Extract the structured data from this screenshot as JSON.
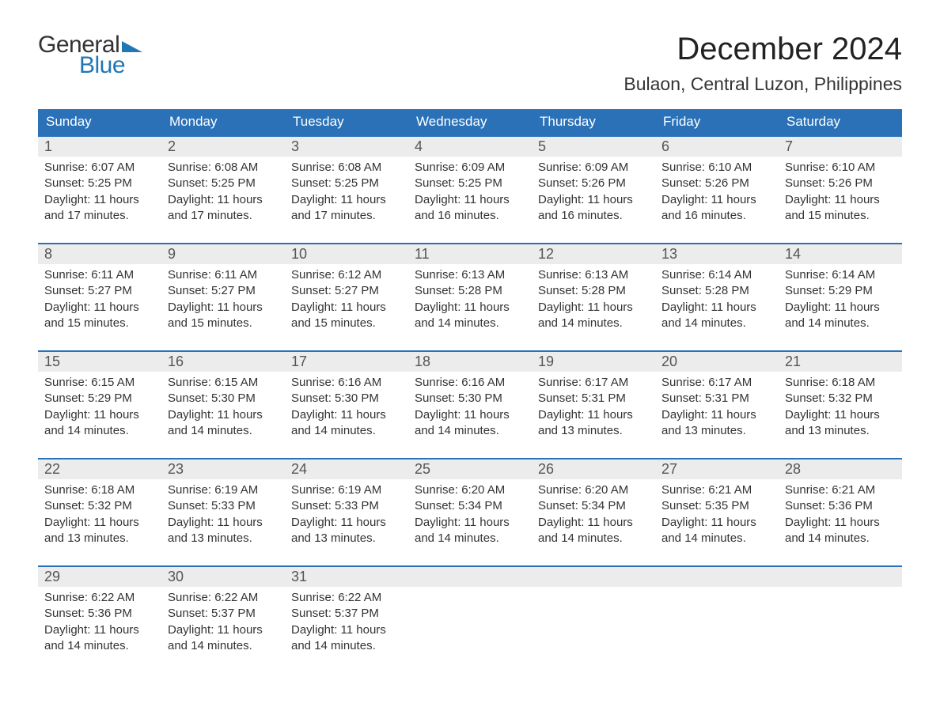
{
  "logo": {
    "general": "General",
    "blue": "Blue",
    "tri_color": "#1f77b4"
  },
  "title": "December 2024",
  "location": "Bulaon, Central Luzon, Philippines",
  "colors": {
    "header_bg": "#2a71b8",
    "header_text": "#ffffff",
    "daynum_bg": "#ececec",
    "daynum_border": "#2a71b8",
    "text": "#333333"
  },
  "day_headers": [
    "Sunday",
    "Monday",
    "Tuesday",
    "Wednesday",
    "Thursday",
    "Friday",
    "Saturday"
  ],
  "weeks": [
    [
      {
        "n": "1",
        "sr": "6:07 AM",
        "ss": "5:25 PM",
        "dl": "11 hours and 17 minutes."
      },
      {
        "n": "2",
        "sr": "6:08 AM",
        "ss": "5:25 PM",
        "dl": "11 hours and 17 minutes."
      },
      {
        "n": "3",
        "sr": "6:08 AM",
        "ss": "5:25 PM",
        "dl": "11 hours and 17 minutes."
      },
      {
        "n": "4",
        "sr": "6:09 AM",
        "ss": "5:25 PM",
        "dl": "11 hours and 16 minutes."
      },
      {
        "n": "5",
        "sr": "6:09 AM",
        "ss": "5:26 PM",
        "dl": "11 hours and 16 minutes."
      },
      {
        "n": "6",
        "sr": "6:10 AM",
        "ss": "5:26 PM",
        "dl": "11 hours and 16 minutes."
      },
      {
        "n": "7",
        "sr": "6:10 AM",
        "ss": "5:26 PM",
        "dl": "11 hours and 15 minutes."
      }
    ],
    [
      {
        "n": "8",
        "sr": "6:11 AM",
        "ss": "5:27 PM",
        "dl": "11 hours and 15 minutes."
      },
      {
        "n": "9",
        "sr": "6:11 AM",
        "ss": "5:27 PM",
        "dl": "11 hours and 15 minutes."
      },
      {
        "n": "10",
        "sr": "6:12 AM",
        "ss": "5:27 PM",
        "dl": "11 hours and 15 minutes."
      },
      {
        "n": "11",
        "sr": "6:13 AM",
        "ss": "5:28 PM",
        "dl": "11 hours and 14 minutes."
      },
      {
        "n": "12",
        "sr": "6:13 AM",
        "ss": "5:28 PM",
        "dl": "11 hours and 14 minutes."
      },
      {
        "n": "13",
        "sr": "6:14 AM",
        "ss": "5:28 PM",
        "dl": "11 hours and 14 minutes."
      },
      {
        "n": "14",
        "sr": "6:14 AM",
        "ss": "5:29 PM",
        "dl": "11 hours and 14 minutes."
      }
    ],
    [
      {
        "n": "15",
        "sr": "6:15 AM",
        "ss": "5:29 PM",
        "dl": "11 hours and 14 minutes."
      },
      {
        "n": "16",
        "sr": "6:15 AM",
        "ss": "5:30 PM",
        "dl": "11 hours and 14 minutes."
      },
      {
        "n": "17",
        "sr": "6:16 AM",
        "ss": "5:30 PM",
        "dl": "11 hours and 14 minutes."
      },
      {
        "n": "18",
        "sr": "6:16 AM",
        "ss": "5:30 PM",
        "dl": "11 hours and 14 minutes."
      },
      {
        "n": "19",
        "sr": "6:17 AM",
        "ss": "5:31 PM",
        "dl": "11 hours and 13 minutes."
      },
      {
        "n": "20",
        "sr": "6:17 AM",
        "ss": "5:31 PM",
        "dl": "11 hours and 13 minutes."
      },
      {
        "n": "21",
        "sr": "6:18 AM",
        "ss": "5:32 PM",
        "dl": "11 hours and 13 minutes."
      }
    ],
    [
      {
        "n": "22",
        "sr": "6:18 AM",
        "ss": "5:32 PM",
        "dl": "11 hours and 13 minutes."
      },
      {
        "n": "23",
        "sr": "6:19 AM",
        "ss": "5:33 PM",
        "dl": "11 hours and 13 minutes."
      },
      {
        "n": "24",
        "sr": "6:19 AM",
        "ss": "5:33 PM",
        "dl": "11 hours and 13 minutes."
      },
      {
        "n": "25",
        "sr": "6:20 AM",
        "ss": "5:34 PM",
        "dl": "11 hours and 14 minutes."
      },
      {
        "n": "26",
        "sr": "6:20 AM",
        "ss": "5:34 PM",
        "dl": "11 hours and 14 minutes."
      },
      {
        "n": "27",
        "sr": "6:21 AM",
        "ss": "5:35 PM",
        "dl": "11 hours and 14 minutes."
      },
      {
        "n": "28",
        "sr": "6:21 AM",
        "ss": "5:36 PM",
        "dl": "11 hours and 14 minutes."
      }
    ],
    [
      {
        "n": "29",
        "sr": "6:22 AM",
        "ss": "5:36 PM",
        "dl": "11 hours and 14 minutes."
      },
      {
        "n": "30",
        "sr": "6:22 AM",
        "ss": "5:37 PM",
        "dl": "11 hours and 14 minutes."
      },
      {
        "n": "31",
        "sr": "6:22 AM",
        "ss": "5:37 PM",
        "dl": "11 hours and 14 minutes."
      },
      null,
      null,
      null,
      null
    ]
  ],
  "labels": {
    "sunrise": "Sunrise:",
    "sunset": "Sunset:",
    "daylight": "Daylight:"
  }
}
